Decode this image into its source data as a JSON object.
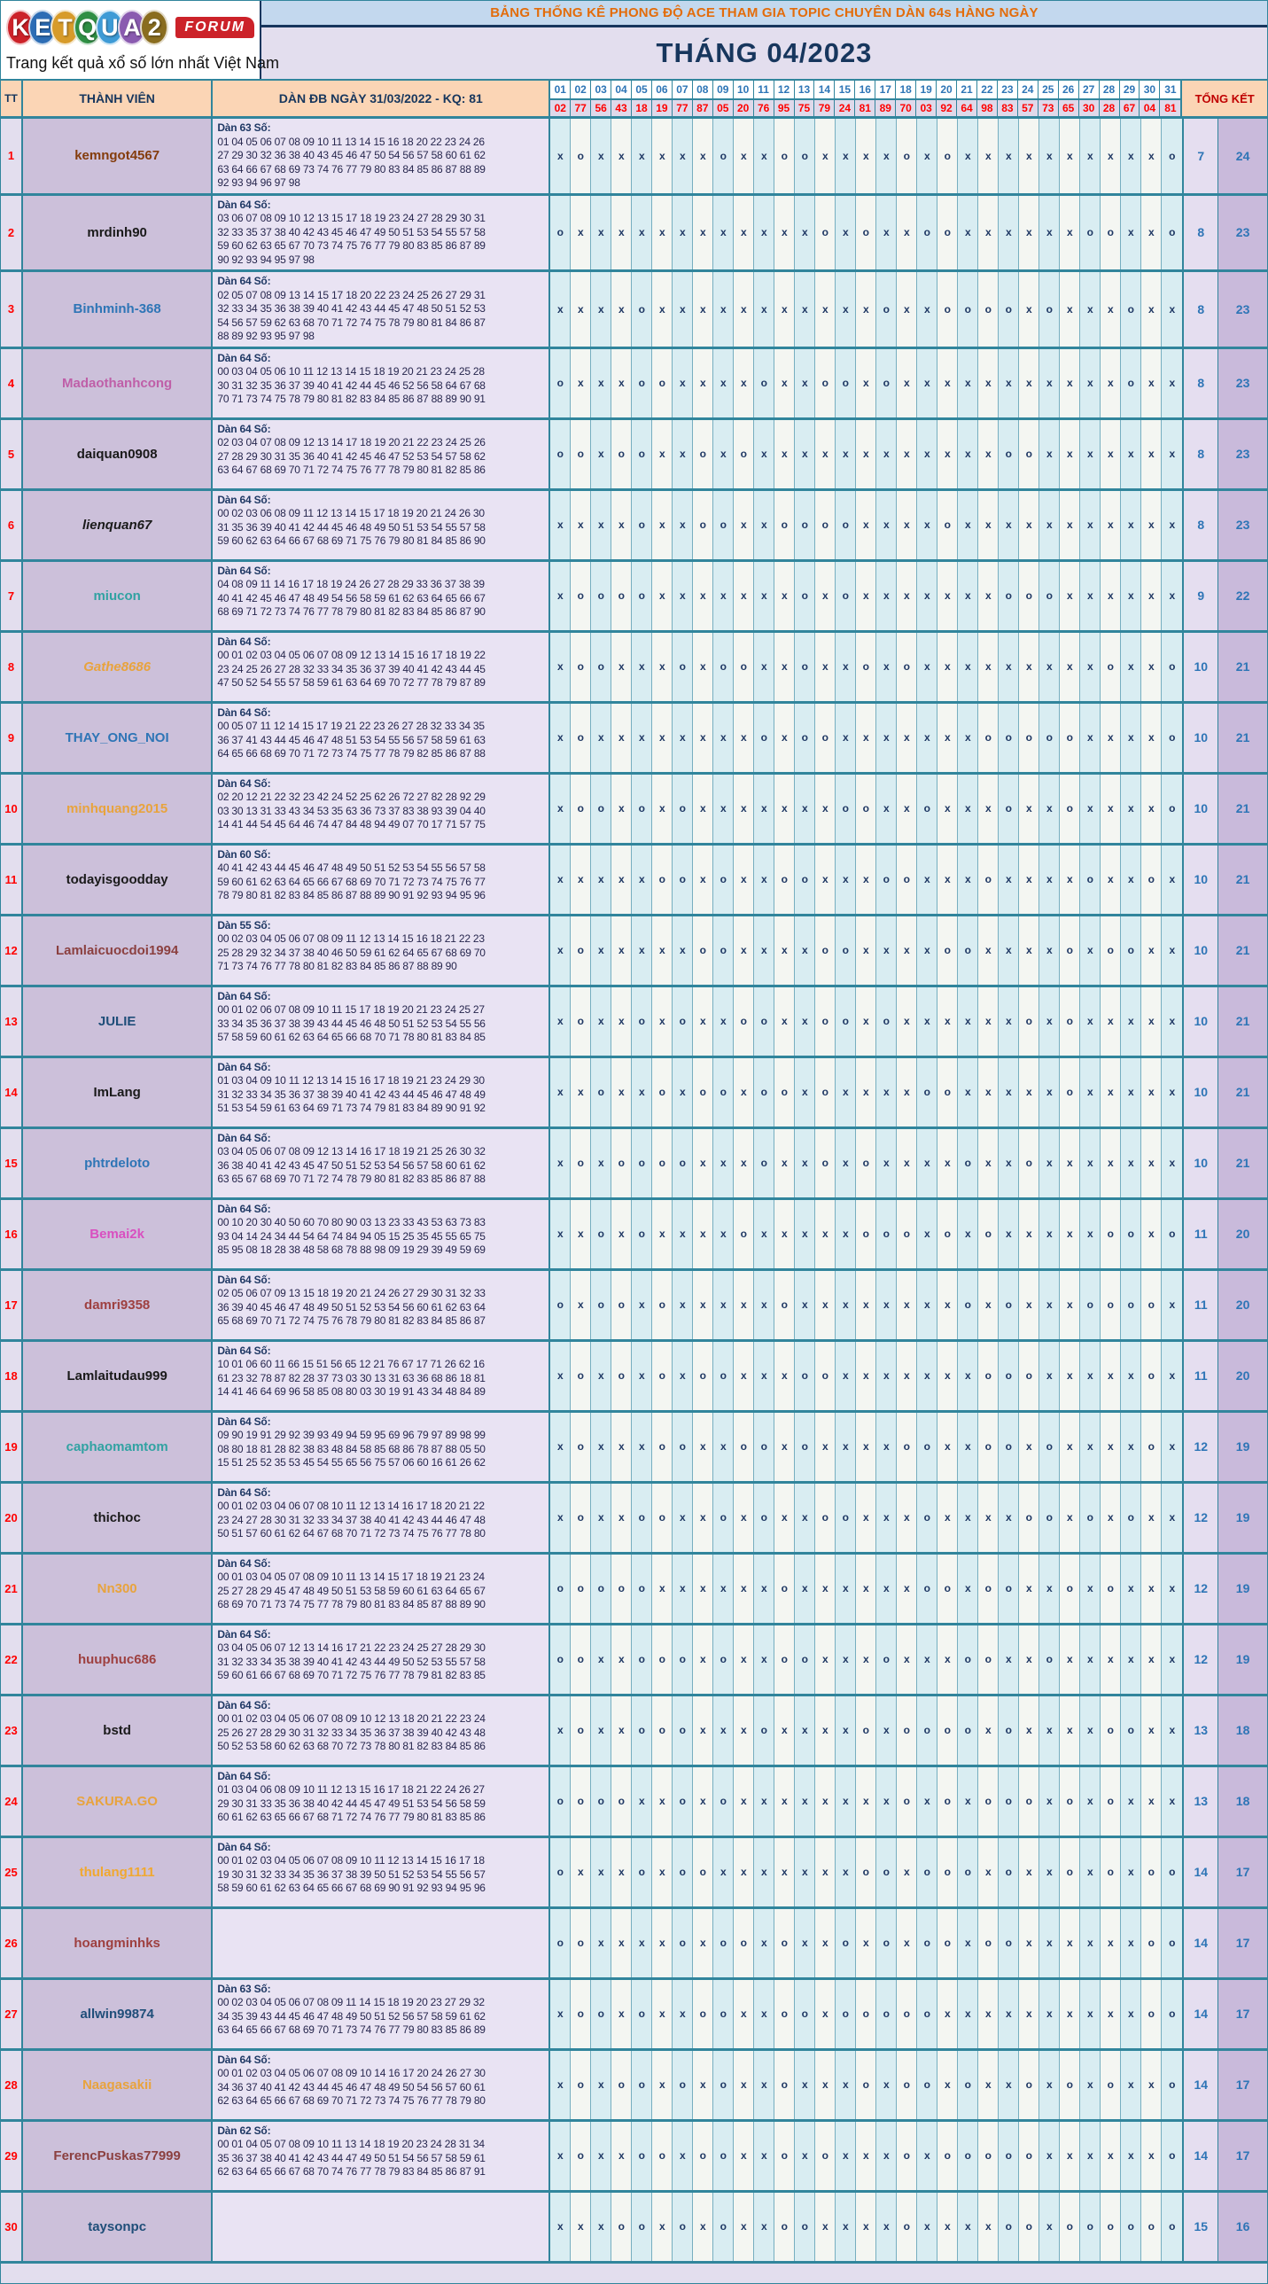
{
  "logo": {
    "letters": [
      {
        "ch": "K",
        "color": "#cc2229"
      },
      {
        "ch": "E",
        "color": "#2d6db5"
      },
      {
        "ch": "T",
        "color": "#d79b2a"
      },
      {
        "ch": "Q",
        "color": "#2f8f44"
      },
      {
        "ch": "U",
        "color": "#3e9bd6"
      },
      {
        "ch": "A",
        "color": "#8a5bb0"
      },
      {
        "ch": "2",
        "color": "#8a6d1f"
      }
    ],
    "forum": "FORUM",
    "tagline": "Trang kết quả xổ số lớn nhất Việt Nam"
  },
  "header": {
    "title": "BẢNG THỐNG KÊ PHONG ĐỘ ACE THAM GIA TOPIC CHUYÊN DÀN 64s HÀNG NGÀY",
    "month": "THÁNG 04/2023",
    "col_tt": "TT",
    "col_member": "THÀNH VIÊN",
    "col_dan": "DÀN ĐB NGÀY 31/03/2022 - KQ: 81",
    "col_total": "TỔNG KẾT",
    "days": [
      "01",
      "02",
      "03",
      "04",
      "05",
      "06",
      "07",
      "08",
      "09",
      "10",
      "11",
      "12",
      "13",
      "14",
      "15",
      "16",
      "17",
      "18",
      "19",
      "20",
      "21",
      "22",
      "23",
      "24",
      "25",
      "26",
      "27",
      "28",
      "29",
      "30",
      "31"
    ],
    "kq": [
      "02",
      "77",
      "56",
      "43",
      "18",
      "19",
      "77",
      "87",
      "05",
      "20",
      "76",
      "95",
      "75",
      "79",
      "24",
      "81",
      "89",
      "70",
      "03",
      "92",
      "64",
      "98",
      "83",
      "57",
      "73",
      "65",
      "30",
      "28",
      "67",
      "04",
      "81"
    ]
  },
  "rows": [
    {
      "tt": "1",
      "member": "kemngot4567",
      "color": "#843c0c",
      "italic": false,
      "dan_label": "Dàn 63 Số:",
      "dan_lines": [
        "01 04 05 06 07 08 09 10 11 13 14 15 16 18 20 22 23 24 26",
        "27 29 30 32 36 38 40 43 45 46 47 50 54 56 57 58 60 61 62",
        "63 64 66 67 68 69 73 74 76 77 79 80 83 84 85 86 87 88 89",
        "92 93 94 96 97 98"
      ],
      "marks": "xoxxxxxxoxxooxxxxoxoxxxxxxxxxxo",
      "t1": "7",
      "t2": "24"
    },
    {
      "tt": "2",
      "member": "mrdinh90",
      "color": "#1a1a1a",
      "italic": false,
      "dan_label": "Dàn 64 Số:",
      "dan_lines": [
        "03 06 07 08 09 10 12 13 15 17 18 19 23 24 27 28 29 30 31",
        "32 33 35 37 38 40 42 43 45 46 47 49 50 51 53 54 55 57 58",
        "59 60 62 63 65 67 70 73 74 75 76 77 79 80 83 85 86 87 89",
        "90 92 93 94 95 97 98"
      ],
      "marks": "oxxxxxxxxxxxxoxoxxooxxxxxxooxxo",
      "t1": "8",
      "t2": "23"
    },
    {
      "tt": "3",
      "member": "Binhminh-368",
      "color": "#2e75b6",
      "italic": false,
      "dan_label": "Dàn 64 Số:",
      "dan_lines": [
        "02 05 07 08 09 13 14 15 17 18 20 22 23 24 25 26 27 29 31",
        "32 33 34 35 36 38 39 40 41 42 43 44 45 47 48 50 51 52 53",
        "54 56 57 59 62 63 68 70 71 72 74 75 78 79 80 81 84 86 87",
        "88 89 92 93 95 97 98"
      ],
      "marks": "xxxxoxxxxxxxxxxxoxxooooxoxxxoxx",
      "t1": "8",
      "t2": "23"
    },
    {
      "tt": "4",
      "member": "Madaothanhcong",
      "color": "#bf5fa8",
      "italic": false,
      "dan_label": "Dàn 64 Số:",
      "dan_lines": [
        "00 03 04 05 06 10 11 12 13 14 15 18 19 20 21 23 24 25 28",
        "30 31 32 35 36 37 39 40 41 42 44 45 46 52 56 58 64 67 68",
        "70 71 73 74 75 78 79 80 81 82 83 84 85 86 87 88 89 90 91"
      ],
      "marks": "oxxxooxxxxoxxooxoxxxxxxxxxxxoxx",
      "t1": "8",
      "t2": "23"
    },
    {
      "tt": "5",
      "member": "daiquan0908",
      "color": "#1a1a1a",
      "italic": false,
      "dan_label": "Dàn 64 Số:",
      "dan_lines": [
        "02 03 04 07 08 09 12 13 14 17 18 19 20 21 22 23 24 25 26",
        "27 28 29 30 31 35 36 40 41 42 45 46 47 52 53 54 57 58 62",
        "63 64 67 68 69 70 71 72 74 75 76 77 78 79 80 81 82 85 86"
      ],
      "marks": "ooxooxxoxoxxxxxxxxxxxxooxxxxxxx",
      "t1": "8",
      "t2": "23"
    },
    {
      "tt": "6",
      "member": "lienquan67",
      "color": "#1a1a1a",
      "italic": true,
      "dan_label": "Dàn 64 Số:",
      "dan_lines": [
        "00 02 03 06 08 09 11 12 13 14 15 17 18 19 20 21 24 26 30",
        "31 35 36 39 40 41 42 44 45 46 48 49 50 51 53 54 55 57 58",
        "59 60 62 63 64 66 67 68 69 71 75 76 79 80 81 84 85 86 90"
      ],
      "marks": "xxxxoxxooxxooooxxxxoxxxxxxxxxxx",
      "t1": "8",
      "t2": "23"
    },
    {
      "tt": "7",
      "member": "miucon",
      "color": "#31a2a2",
      "italic": false,
      "dan_label": "Dàn 64 Số:",
      "dan_lines": [
        "04 08 09 11 14 16 17 18 19 24 26 27 28 29 33 36 37 38 39",
        "40 41 42 45 46 47 48 49 54 56 58 59 61 62 63 64 65 66 67",
        "68 69 71 72 73 74 76 77 78 79 80 81 82 83 84 85 86 87 90"
      ],
      "marks": "xooooxxxxxxxoxoxxxxxxxoooxxxxxx",
      "t1": "9",
      "t2": "22"
    },
    {
      "tt": "8",
      "member": "Gathe8686",
      "color": "#e8a33d",
      "italic": true,
      "dan_label": "Dàn 64 Số:",
      "dan_lines": [
        "00 01 02 03 04 05 06 07 08 09 12 13 14 15 16 17 18 19 22",
        "23 24 25 26 27 28 32 33 34 35 36 37 39 40 41 42 43 44 45",
        "47 50 52 54 55 57 58 59 61 63 64 69 70 72 77 78 79 87 89"
      ],
      "marks": "xooxxxoxooxxoxxoxoxxxxxxxxxoxxo",
      "t1": "10",
      "t2": "21"
    },
    {
      "tt": "9",
      "member": "THAY_ONG_NOI",
      "color": "#2e75b6",
      "italic": false,
      "dan_label": "Dàn 64 Số:",
      "dan_lines": [
        "00 05 07 11 12 14 15 17 19 21 22 23 26 27 28 32 33 34 35",
        "36 37 41 43 44 45 46 47 48 51 53 54 55 56 57 58 59 61 63",
        "64 65 66 68 69 70 71 72 73 74 75 77 78 79 82 85 86 87 88"
      ],
      "marks": "xoxxxxxxxxoxooxxxxxxxoooooxxxxo",
      "t1": "10",
      "t2": "21"
    },
    {
      "tt": "10",
      "member": "minhquang2015",
      "color": "#e8a33d",
      "italic": false,
      "dan_label": "Dàn 64 Số:",
      "dan_lines": [
        "02 20 12 21 22 32 23 42 24 52 25 62 26 72 27 82 28 92 29",
        "03 30 13 31 33 43 34 53 35 63 36 73 37 83 38 93 39 04 40",
        "14 41 44 54 45 64 46 74 47 84 48 94 49 07 70 17 71 57 75"
      ],
      "marks": "xooxoxoxxxxxxxooxxoxxxoxxoxxxxo",
      "t1": "10",
      "t2": "21"
    },
    {
      "tt": "11",
      "member": "todayisgoodday",
      "color": "#1a1a1a",
      "italic": false,
      "dan_label": "Dàn 60 Số:",
      "dan_lines": [
        "40 41 42 43 44 45 46 47 48 49 50 51 52 53 54 55 56 57 58",
        "59 60 61 62 63 64 65 66 67 68 69 70 71 72 73 74 75 76 77",
        "78 79 80 81 82 83 84 85 86 87 88 89 90 91 92 93 94 95 96"
      ],
      "marks": "xxxxxooxoxxooxxxooxxxoxxxxoxxox",
      "t1": "10",
      "t2": "21"
    },
    {
      "tt": "12",
      "member": "Lamlaicuocdoi1994",
      "color": "#8b4040",
      "italic": false,
      "dan_label": "Dàn 55 Số:",
      "dan_lines": [
        "00 02 03 04 05 06 07 08 09 11 12 13 14 15 16 18 21 22 23",
        "25 28 29 32 34 37 38 40 46 50 59 61 62 64 65 67 68 69 70",
        "71 73 74 76 77 78 80 81 82 83 84 85 86 87 88 89 90"
      ],
      "marks": "xoxxxxxooxxxxooxxxxooxxxxoxooxx",
      "t1": "10",
      "t2": "21"
    },
    {
      "tt": "13",
      "member": "JULIE",
      "color": "#1f4e79",
      "italic": false,
      "dan_label": "Dàn 64 Số:",
      "dan_lines": [
        "00 01 02 06 07 08 09 10 11 15 17 18 19 20 21 23 24 25 27",
        "33 34 35 36 37 38 39 43 44 45 46 48 50 51 52 53 54 55 56",
        "57 58 59 60 61 62 63 64 65 66 68 70 71 78 80 81 83 84 85"
      ],
      "marks": "xoxxoxoxxooxxooxoxxxxxxoxoxxxxx",
      "t1": "10",
      "t2": "21"
    },
    {
      "tt": "14",
      "member": "ImLang",
      "color": "#1a1a1a",
      "italic": false,
      "dan_label": "Dàn 64 Số:",
      "dan_lines": [
        "01 03 04 09 10 11 12 13 14 15 16 17 18 19 21 23 24 29 30",
        "31 32 33 34 35 36 37 38 39 40 41 42 43 44 45 46 47 48 49",
        "51 53 54 59 61 63 64 69 71 73 74 79 81 83 84 89 90 91 92"
      ],
      "marks": "xxoxxoxooxooxoxxxxooxxxxxoxxxxx",
      "t1": "10",
      "t2": "21"
    },
    {
      "tt": "15",
      "member": "phtrdeloto",
      "color": "#2e75b6",
      "italic": false,
      "dan_label": "Dàn 64 Số:",
      "dan_lines": [
        "03 04 05 06 07 08 09 12 13 14 16 17 18 19 21 25 26 30 32",
        "36 38 40 41 42 43 45 47 50 51 52 53 54 56 57 58 60 61 62",
        "63 65 67 68 69 70 71 72 74 78 79 80 81 82 83 85 86 87 88"
      ],
      "marks": "xoxooooxxxoxxoxoxxxxoxxoxxxxxxx",
      "t1": "10",
      "t2": "21"
    },
    {
      "tt": "16",
      "member": "Bemai2k",
      "color": "#d94fc0",
      "italic": false,
      "dan_label": "Dàn 64 Số:",
      "dan_lines": [
        "00 10 20 30 40 50 60 70 80 90 03 13 23 33 43 53 63 73 83",
        "93 04 14 24 34 44 54 64 74 84 94 05 15 25 35 45 55 65 75",
        "85 95 08 18 28 38 48 58 68 78 88 98 09 19 29 39 49 59 69"
      ],
      "marks": "xxoxoxxxxoxxxxxoooxoxoxxxxxooxo",
      "t1": "11",
      "t2": "20"
    },
    {
      "tt": "17",
      "member": "damri9358",
      "color": "#9e4040",
      "italic": false,
      "dan_label": "Dàn 64 Số:",
      "dan_lines": [
        "02 05 06 07 09 13 15 18 19 20 21 24 26 27 29 30 31 32 33",
        "36 39 40 45 46 47 48 49 50 51 52 53 54 56 60 61 62 63 64",
        "65 68 69 70 71 72 74 75 76 78 79 80 81 82 83 84 85 86 87"
      ],
      "marks": "oxooxoxxxxxoxxxxxxxxoxoxxxoooox",
      "t1": "11",
      "t2": "20"
    },
    {
      "tt": "18",
      "member": "Lamlaitudau999",
      "color": "#1a1a1a",
      "italic": false,
      "dan_label": "Dàn 64 Số:",
      "dan_lines": [
        "10 01 06 60 11 66 15 51 56 65 12 21 76 67 17 71 26 62 16",
        "61 23 32 78 87 82 28 37 73 03 30 13 31 63 36 68 86 18 81",
        "14 41 46 64 69 96 58 85 08 80 03 30 19 91 43 34 48 84 89"
      ],
      "marks": "xoxoxoxooxxxooxxxxxxxoooxxxxxox",
      "t1": "11",
      "t2": "20"
    },
    {
      "tt": "19",
      "member": "caphaomamtom",
      "color": "#31a2a2",
      "italic": false,
      "dan_label": "Dàn 64 Số:",
      "dan_lines": [
        "09 90 19 91 29 92 39 93 49 94 59 95 69 96 79 97 89 98 99",
        "08 80 18 81 28 82 38 83 48 84 58 85 68 86 78 87 88 05 50",
        "15 51 25 52 35 53 45 54 55 65 56 75 57 06 60 16 61 26 62"
      ],
      "marks": "xoxxxooxxooxoxxxxooxxooxoxxxxox",
      "t1": "12",
      "t2": "19"
    },
    {
      "tt": "20",
      "member": "thichoc",
      "color": "#1a1a1a",
      "italic": false,
      "dan_label": "Dàn 64 Số:",
      "dan_lines": [
        "00 01 02 03 04 06 07 08 10 11 12 13 14 16 17 18 20 21 22",
        "23 24 27 28 30 31 32 33 34 37 38 40 41 42 43 44 46 47 48",
        "50 51 57 60 61 62 64 67 68 70 71 72 73 74 75 76 77 78 80"
      ],
      "marks": "xoxxooxxoxoxxooxxxoxxxxooxoxoxx",
      "t1": "12",
      "t2": "19"
    },
    {
      "tt": "21",
      "member": "Nn300",
      "color": "#e8a33d",
      "italic": false,
      "dan_label": "Dàn 64 Số:",
      "dan_lines": [
        "00 01 03 04 05 07 08 09 10 11 13 14 15 17 18 19 21 23 24",
        "25 27 28 29 45 47 48 49 50 51 53 58 59 60 61 63 64 65 67",
        "68 69 70 71 73 74 75 77 78 79 80 81 83 84 85 87 88 89 90"
      ],
      "marks": "oooooxxxxxxoxxxxxxooxooxxoxoxxx",
      "t1": "12",
      "t2": "19"
    },
    {
      "tt": "22",
      "member": "huuphuc686",
      "color": "#9e4040",
      "italic": false,
      "dan_label": "Dàn 64 Số:",
      "dan_lines": [
        "03 04 05 06 07 12 13 14 16 17 21 22 23 24 25 27 28 29 30",
        "31 32 33 34 35 38 39 40 41 42 43 44 49 50 52 53 55 57 58",
        "59 60 61 66 67 68 69 70 71 72 75 76 77 78 79 81 82 83 85"
      ],
      "marks": "ooxxoooxoxxooxxxoxxxooxxoxxxxxx",
      "t1": "12",
      "t2": "19"
    },
    {
      "tt": "23",
      "member": "bstd",
      "color": "#1a1a1a",
      "italic": false,
      "dan_label": "Dàn 64 Số:",
      "dan_lines": [
        "00 01 02 03 04 05 06 07 08 09 10 12 13 18 20 21 22 23 24",
        "25 26 27 28 29 30 31 32 33 34 35 36 37 38 39 40 42 43 48",
        "50 52 53 58 60 62 63 68 70 72 73 78 80 81 82 83 84 85 86"
      ],
      "marks": "xoxxoooxxxoxxxxoxoooox oxxxxooxx",
      "t1": "13",
      "t2": "18"
    },
    {
      "tt": "24",
      "member": "SAKURA.GO",
      "color": "#e8a33d",
      "italic": false,
      "dan_label": "Dàn 64 Số:",
      "dan_lines": [
        "01 03 04 06 08 09 10 11 12 13 15 16 17 18 21 22 24 26 27",
        "29 30 31 33 35 36 38 40 42 44 45 47 49 51 53 54 56 58 59",
        "60 61 62 63 65 66 67 68 71 72 74 76 77 79 80 81 83 85 86"
      ],
      "marks": "ooooxxoxoxxxxxxxxoxoxoooxoxoxxx",
      "t1": "13",
      "t2": "18"
    },
    {
      "tt": "25",
      "member": "thulang1111",
      "color": "#f0a830",
      "italic": false,
      "dan_label": "Dàn 64 Số:",
      "dan_lines": [
        "00 01 02 03 04 05 06 07 08 09 10 11 12 13 14 15 16 17 18",
        "19 30 31 32 33 34 35 36 37 38 39 50 51 52 53 54 55 56 57",
        "58 59 60 61 62 63 64 65 66 67 68 69 90 91 92 93 94 95 96"
      ],
      "marks": "oxxxoxooxxxxxxxooxoooxoxxoxoxoo",
      "t1": "14",
      "t2": "17"
    },
    {
      "tt": "26",
      "member": "hoangminhks",
      "color": "#9e4040",
      "italic": false,
      "dan_label": "",
      "dan_lines": [],
      "marks": "ooxxxxoxooxoxxoxoxooxooxxxxxxoo",
      "t1": "14",
      "t2": "17"
    },
    {
      "tt": "27",
      "member": "allwin99874",
      "color": "#1f4e79",
      "italic": false,
      "dan_label": "Dàn 63 Số:",
      "dan_lines": [
        "00 02 03 04 05 06 07 08 09 11 14 15 18 19 20 23 27 29 32",
        "34 35 39 43 44 45 46 47 48 49 50 51 52 56 57 58 59 61 62",
        "63 64 65 66 67 68 69 70 71 73 74 76 77 79 80 83 85 86 89"
      ],
      "marks": "xooxoxxooxxooxoooooxxxxxxxxxxoo",
      "t1": "14",
      "t2": "17"
    },
    {
      "tt": "28",
      "member": "Naagasakii",
      "color": "#e8a33d",
      "italic": false,
      "dan_label": "Dàn 64 Số:",
      "dan_lines": [
        "00 01 02 03 04 05 06 07 08 09 10 14 16 17 20 24 26 27 30",
        "34 36 37 40 41 42 43 44 45 46 47 48 49 50 54 56 57 60 61",
        "62 63 64 65 66 67 68 69 70 71 72 73 74 75 76 77 78 79 80"
      ],
      "marks": "xoxooxoxoxxoxxxoxooxoxxoxoxoxxo",
      "t1": "14",
      "t2": "17"
    },
    {
      "tt": "29",
      "member": "FerencPuskas77999",
      "color": "#8b4040",
      "italic": false,
      "dan_label": "Dàn 62 Số:",
      "dan_lines": [
        "00 01 04 05 07 08 09 10 11 13 14 18 19 20 23 24 28 31 34",
        "35 36 37 38 40 41 42 43 44 47 49 50 51 54 56 57 58 59 61",
        "62 63 64 65 66 67 68 70 74 76 77 78 79 83 84 85 86 87 91"
      ],
      "marks": "xoxxooxooxxoxoxxxoxoooooxxxxxxo",
      "t1": "14",
      "t2": "17"
    },
    {
      "tt": "30",
      "member": "taysonpc",
      "color": "#1f4e79",
      "italic": false,
      "dan_label": "",
      "dan_lines": [],
      "marks": "xxxooxoxoxxooxxxxoxxxxooxoooooo",
      "t1": "15",
      "t2": "16"
    }
  ]
}
